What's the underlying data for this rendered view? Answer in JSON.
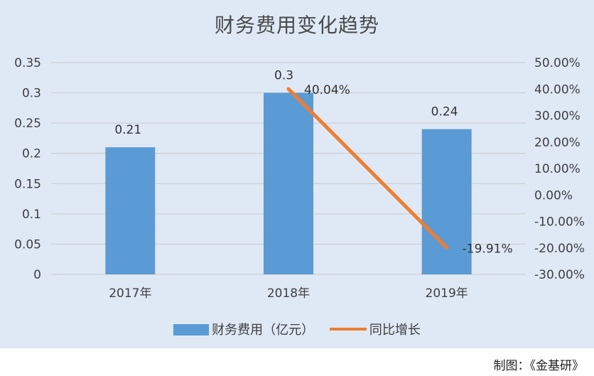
{
  "chart_data": {
    "type": "bar",
    "title": "财务费用变化趋势",
    "categories": [
      "2017年",
      "2018年",
      "2019年"
    ],
    "series": [
      {
        "name": "财务费用（亿元）",
        "type": "bar",
        "axis": "left",
        "color": "#5b9bd5",
        "values": [
          0.21,
          0.3,
          0.24
        ],
        "labels": [
          "0.21",
          "0.3",
          "0.24"
        ]
      },
      {
        "name": "同比增长",
        "type": "line",
        "axis": "right",
        "color": "#ed7d31",
        "values": [
          null,
          40.04,
          -19.91
        ],
        "labels": [
          "",
          "40.04%",
          "-19.91%"
        ]
      }
    ],
    "y_left": {
      "range": [
        0,
        0.35
      ],
      "ticks": [
        0,
        0.05,
        0.1,
        0.15,
        0.2,
        0.25,
        0.3,
        0.35
      ],
      "tick_labels": [
        "0",
        "0.05",
        "0.1",
        "0.15",
        "0.2",
        "0.25",
        "0.3",
        "0.35"
      ]
    },
    "y_right": {
      "range": [
        -30,
        50
      ],
      "ticks": [
        -30,
        -20,
        -10,
        0,
        10,
        20,
        30,
        40,
        50
      ],
      "tick_labels": [
        "-30.00%",
        "-20.00%",
        "-10.00%",
        "0.00%",
        "10.00%",
        "20.00%",
        "30.00%",
        "40.00%",
        "50.00%"
      ]
    },
    "grid": true,
    "legend_position": "bottom"
  },
  "footer": {
    "credit": "制图：《金基研》"
  }
}
